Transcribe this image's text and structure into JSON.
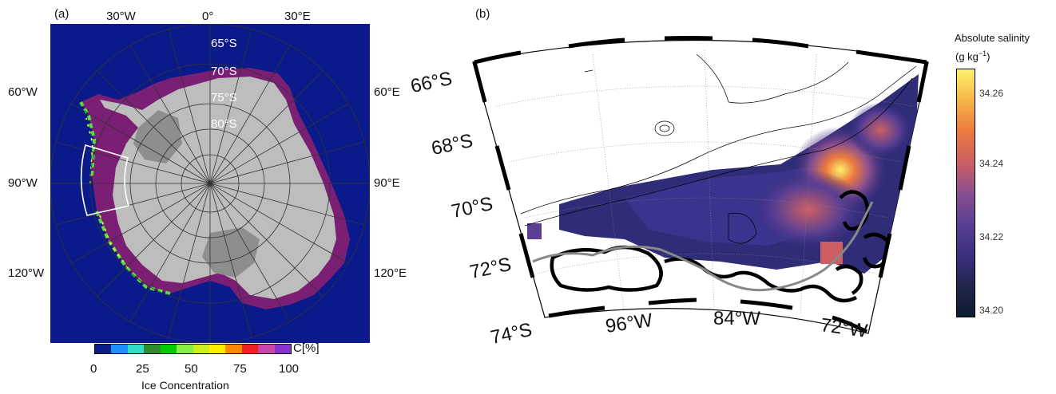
{
  "panel_a": {
    "label": "(a)",
    "lon_labels_top": [
      "30°W",
      "0°",
      "30°E"
    ],
    "lon_labels_left": [
      "60°W",
      "90°W",
      "120°W"
    ],
    "lon_labels_right": [
      "60°E",
      "90°E",
      "120°E"
    ],
    "lat_labels": [
      "65°S",
      "70°S",
      "75°S",
      "80°S"
    ],
    "colorbar": {
      "unit_label": "C[%]",
      "ticks": [
        "0",
        "25",
        "50",
        "75",
        "100"
      ],
      "title": "Ice Concentration",
      "colors": [
        "#0b1f86",
        "#1e90ff",
        "#33ddc8",
        "#2e8b2e",
        "#00cc00",
        "#88ee44",
        "#ccee22",
        "#ffee00",
        "#ff8800",
        "#ee2222",
        "#cc44aa",
        "#8833cc"
      ]
    },
    "colors": {
      "ocean": "#0a1a8a",
      "land": "#bdbdbd",
      "ice_shelf": "#8e8e8e",
      "seaice": "#7a1f73"
    }
  },
  "panel_b": {
    "label": "(b)",
    "lat_labels": [
      "66°S",
      "68°S",
      "70°S",
      "72°S",
      "74°S"
    ],
    "lon_labels": [
      "96°W",
      "84°W",
      "72°W"
    ],
    "colorbar": {
      "title_line1": "Absolute salinity",
      "title_line2_base": "(g kg",
      "title_line2_exp": "−1",
      "title_line2_end": ")",
      "ticks": [
        "34.26",
        "34.24",
        "34.22",
        "34.20"
      ],
      "colors": [
        "#fdf16a",
        "#f7b54a",
        "#ec7a3e",
        "#cd5f63",
        "#8b4f8f",
        "#5a3f93",
        "#3b2f80",
        "#22264f",
        "#0d1b2e"
      ]
    }
  }
}
